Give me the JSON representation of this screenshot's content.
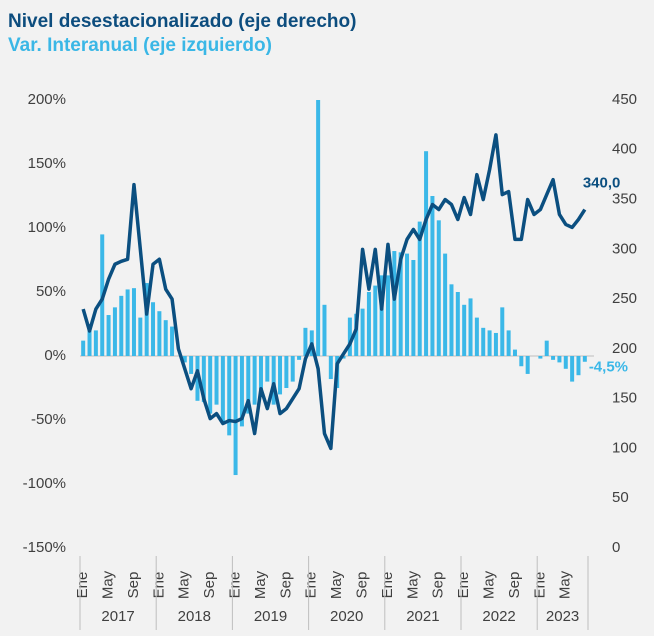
{
  "chart_data": {
    "type": "bar_line",
    "title": "Nivel desestacionalizado (eje derecho)",
    "subtitle": "Var. Interanual (eje izquierdo)",
    "categories": [
      "Ene",
      null,
      null,
      null,
      "May",
      null,
      null,
      null,
      "Sep",
      null,
      null,
      null,
      "Ene",
      null,
      null,
      null,
      "May",
      null,
      null,
      null,
      "Sep",
      null,
      null,
      null,
      "Ene",
      null,
      null,
      null,
      "May",
      null,
      null,
      null,
      "Sep",
      null,
      null,
      null,
      "Ene",
      null,
      null,
      null,
      "May",
      null,
      null,
      null,
      "Sep",
      null,
      null,
      null,
      "Ene",
      null,
      null,
      null,
      "May",
      null,
      null,
      null,
      "Sep",
      null,
      null,
      null,
      "Ene",
      null,
      null,
      null,
      "May",
      null,
      null,
      null,
      "Sep",
      null,
      null,
      null,
      "Ene",
      null,
      null,
      null,
      "May",
      null,
      null,
      null
    ],
    "years": [
      "2017",
      "2018",
      "2019",
      "2020",
      "2021",
      "2022",
      "2023"
    ],
    "series": [
      {
        "name": "Var. Interanual (eje izquierdo)",
        "kind": "bar",
        "axis": "y",
        "color": "#3bb8e8",
        "values": [
          12,
          25,
          20,
          95,
          32,
          38,
          47,
          52,
          53,
          30,
          57,
          42,
          35,
          28,
          23,
          0,
          -5,
          -14,
          -35,
          -36,
          -45,
          -38,
          -52,
          -62,
          -93,
          -55,
          -45,
          -38,
          -30,
          -20,
          -38,
          -30,
          -25,
          -20,
          -3,
          22,
          20,
          200,
          40,
          -18,
          -25,
          -2,
          30,
          33,
          37,
          50,
          55,
          63,
          63,
          82,
          81,
          80,
          75,
          105,
          160,
          125,
          106,
          80,
          56,
          50,
          40,
          45,
          30,
          22,
          20,
          18,
          38,
          20,
          5,
          -8,
          -14,
          0,
          -2,
          12,
          -3,
          -5,
          -10,
          -20,
          -15,
          -4.5
        ],
        "value_labels": [
          null,
          null,
          null,
          null,
          null,
          null,
          null,
          null,
          null,
          null,
          null,
          null,
          null,
          null,
          null,
          null,
          null,
          null,
          null,
          null,
          null,
          null,
          null,
          null,
          null,
          null,
          null,
          null,
          null,
          null,
          null,
          null,
          null,
          null,
          null,
          null,
          null,
          null,
          null,
          null,
          null,
          null,
          null,
          null,
          null,
          null,
          null,
          null,
          null,
          null,
          null,
          null,
          null,
          null,
          null,
          null,
          null,
          null,
          null,
          null,
          null,
          null,
          null,
          null,
          null,
          null,
          null,
          null,
          null,
          null,
          null,
          null,
          null,
          null,
          null,
          null,
          null,
          null,
          null,
          "-4,5%"
        ]
      },
      {
        "name": "Nivel desestacionalizado (eje derecho)",
        "kind": "line",
        "axis": "y2",
        "color": "#0b4f80",
        "values": [
          240,
          218,
          240,
          250,
          270,
          285,
          288,
          290,
          365,
          300,
          235,
          285,
          290,
          260,
          250,
          200,
          180,
          160,
          178,
          150,
          130,
          135,
          125,
          128,
          127,
          130,
          148,
          115,
          160,
          140,
          165,
          135,
          140,
          150,
          160,
          190,
          205,
          180,
          115,
          100,
          185,
          195,
          205,
          220,
          300,
          260,
          300,
          240,
          305,
          250,
          290,
          310,
          320,
          310,
          330,
          345,
          340,
          350,
          345,
          330,
          352,
          335,
          375,
          350,
          380,
          415,
          355,
          358,
          310,
          310,
          350,
          335,
          340,
          355,
          370,
          335,
          325,
          322,
          330,
          340
        ],
        "value_labels": [
          null,
          null,
          null,
          null,
          null,
          null,
          null,
          null,
          null,
          null,
          null,
          null,
          null,
          null,
          null,
          null,
          null,
          null,
          null,
          null,
          null,
          null,
          null,
          null,
          null,
          null,
          null,
          null,
          null,
          null,
          null,
          null,
          null,
          null,
          null,
          null,
          null,
          null,
          null,
          null,
          null,
          null,
          null,
          null,
          null,
          null,
          null,
          null,
          null,
          null,
          null,
          null,
          null,
          null,
          null,
          null,
          null,
          null,
          null,
          null,
          null,
          null,
          null,
          null,
          null,
          null,
          null,
          null,
          null,
          null,
          null,
          null,
          null,
          null,
          null,
          null,
          null,
          null,
          null,
          "340,0"
        ]
      }
    ],
    "ylim": [
      -150,
      200
    ],
    "yticks": [
      {
        "value": -150,
        "label": "-150%"
      },
      {
        "value": -100,
        "label": "-100%"
      },
      {
        "value": -50,
        "label": "-50%"
      },
      {
        "value": 0,
        "label": "0%"
      },
      {
        "value": 50,
        "label": "50%"
      },
      {
        "value": 100,
        "label": "100%"
      },
      {
        "value": 150,
        "label": "150%"
      },
      {
        "value": 200,
        "label": "200%"
      }
    ],
    "y2lim": [
      0,
      450
    ],
    "y2ticks": [
      0,
      50,
      100,
      150,
      200,
      250,
      300,
      350,
      400,
      450
    ]
  }
}
